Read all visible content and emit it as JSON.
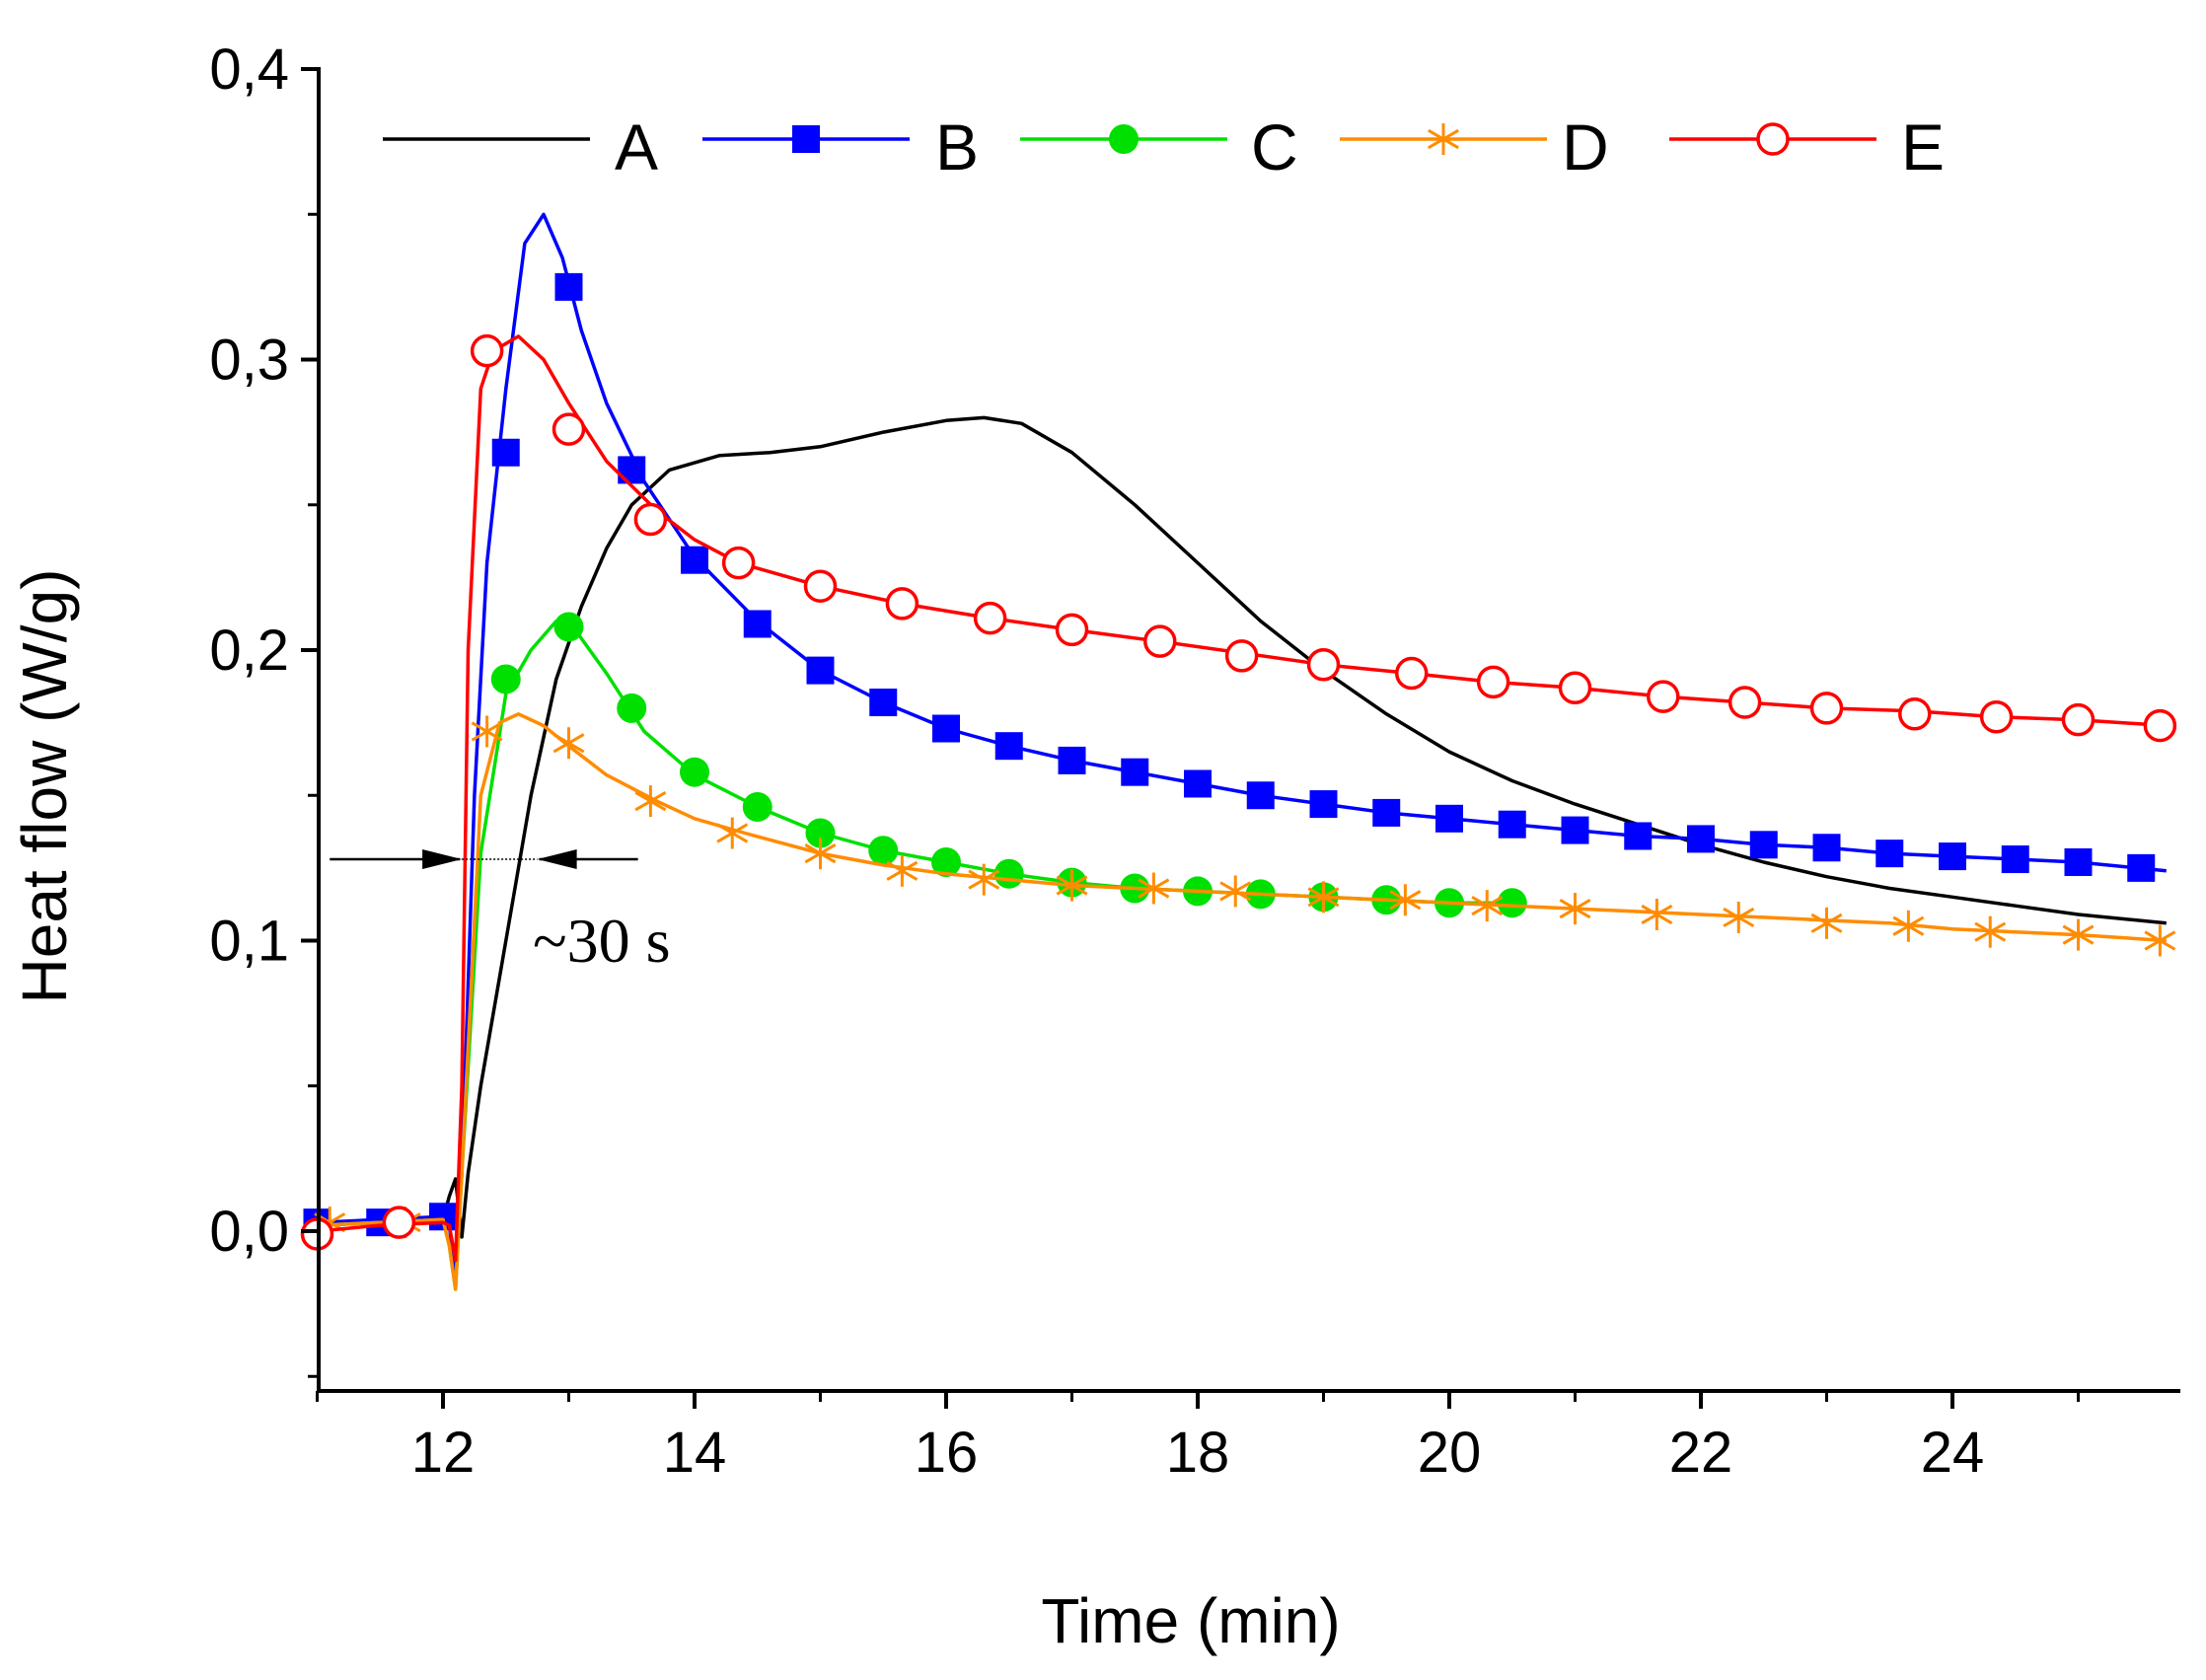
{
  "chart_data": {
    "type": "line",
    "title": "",
    "xlabel": "Time (min)",
    "ylabel": "Heat flow (W/g)",
    "xlim": [
      11,
      25.7
    ],
    "ylim": [
      -0.055,
      0.4
    ],
    "xticks": [
      12,
      14,
      16,
      18,
      20,
      22,
      24
    ],
    "xtick_labels": [
      "12",
      "14",
      "16",
      "18",
      "20",
      "22",
      "24"
    ],
    "yticks": [
      0.0,
      0.1,
      0.2,
      0.3,
      0.4
    ],
    "ytick_labels": [
      "0,0",
      "0,1",
      "0,2",
      "0,3",
      "0,4"
    ],
    "yticks_minor": [
      -0.05,
      0.05,
      0.15,
      0.25,
      0.35
    ],
    "legend_position": "top",
    "annotation": {
      "text": "~30 s",
      "interval_start": 12.15,
      "interval_end": 12.75,
      "y": 0.128,
      "arrow_left_from": 11.1,
      "arrow_right_from": 13.55
    },
    "series": [
      {
        "name": "A",
        "color": "#000000",
        "marker": "none",
        "curve": [
          [
            11.0,
            0.002
          ],
          [
            11.5,
            0.003
          ],
          [
            12.0,
            0.004
          ],
          [
            12.05,
            0.012
          ],
          [
            12.1,
            0.018
          ],
          [
            12.15,
            -0.002
          ],
          [
            12.2,
            0.02
          ],
          [
            12.3,
            0.05
          ],
          [
            12.5,
            0.1
          ],
          [
            12.7,
            0.15
          ],
          [
            12.9,
            0.19
          ],
          [
            13.1,
            0.215
          ],
          [
            13.3,
            0.235
          ],
          [
            13.5,
            0.25
          ],
          [
            13.8,
            0.262
          ],
          [
            14.2,
            0.267
          ],
          [
            14.6,
            0.268
          ],
          [
            15.0,
            0.27
          ],
          [
            15.5,
            0.275
          ],
          [
            16.0,
            0.279
          ],
          [
            16.3,
            0.28
          ],
          [
            16.6,
            0.278
          ],
          [
            17.0,
            0.268
          ],
          [
            17.5,
            0.25
          ],
          [
            18.0,
            0.23
          ],
          [
            18.5,
            0.21
          ],
          [
            19.0,
            0.193
          ],
          [
            19.5,
            0.178
          ],
          [
            20.0,
            0.165
          ],
          [
            20.5,
            0.155
          ],
          [
            21.0,
            0.147
          ],
          [
            21.5,
            0.14
          ],
          [
            22.0,
            0.133
          ],
          [
            22.5,
            0.127
          ],
          [
            23.0,
            0.122
          ],
          [
            23.5,
            0.118
          ],
          [
            24.0,
            0.115
          ],
          [
            24.5,
            0.112
          ],
          [
            25.0,
            0.109
          ],
          [
            25.7,
            0.106
          ]
        ],
        "markers": []
      },
      {
        "name": "B",
        "color": "#0000ff",
        "marker": "square",
        "curve": [
          [
            11.0,
            0.003
          ],
          [
            11.5,
            0.004
          ],
          [
            12.0,
            0.005
          ],
          [
            12.05,
            0.002
          ],
          [
            12.1,
            -0.015
          ],
          [
            12.15,
            0.02
          ],
          [
            12.25,
            0.15
          ],
          [
            12.35,
            0.23
          ],
          [
            12.5,
            0.29
          ],
          [
            12.65,
            0.34
          ],
          [
            12.8,
            0.35
          ],
          [
            12.95,
            0.335
          ],
          [
            13.1,
            0.31
          ],
          [
            13.3,
            0.285
          ],
          [
            13.6,
            0.258
          ],
          [
            14.0,
            0.232
          ],
          [
            14.5,
            0.21
          ],
          [
            15.0,
            0.193
          ],
          [
            15.5,
            0.182
          ],
          [
            16.0,
            0.173
          ],
          [
            16.5,
            0.167
          ],
          [
            17.0,
            0.162
          ],
          [
            17.5,
            0.158
          ],
          [
            18.0,
            0.154
          ],
          [
            18.5,
            0.15
          ],
          [
            19.0,
            0.147
          ],
          [
            19.5,
            0.144
          ],
          [
            20.0,
            0.142
          ],
          [
            20.5,
            0.14
          ],
          [
            21.0,
            0.138
          ],
          [
            21.5,
            0.136
          ],
          [
            22.0,
            0.135
          ],
          [
            22.5,
            0.133
          ],
          [
            23.0,
            0.132
          ],
          [
            23.5,
            0.13
          ],
          [
            24.0,
            0.129
          ],
          [
            24.5,
            0.128
          ],
          [
            25.0,
            0.127
          ],
          [
            25.7,
            0.124
          ]
        ],
        "markers": [
          [
            11.0,
            0.003
          ],
          [
            11.5,
            0.003
          ],
          [
            12.0,
            0.005
          ],
          [
            12.5,
            0.268
          ],
          [
            13.0,
            0.325
          ],
          [
            13.5,
            0.262
          ],
          [
            14.0,
            0.231
          ],
          [
            14.5,
            0.209
          ],
          [
            15.0,
            0.193
          ],
          [
            15.5,
            0.182
          ],
          [
            16.0,
            0.173
          ],
          [
            16.5,
            0.167
          ],
          [
            17.0,
            0.162
          ],
          [
            17.5,
            0.158
          ],
          [
            18.0,
            0.154
          ],
          [
            18.5,
            0.15
          ],
          [
            19.0,
            0.147
          ],
          [
            19.5,
            0.144
          ],
          [
            20.0,
            0.142
          ],
          [
            20.5,
            0.14
          ],
          [
            21.0,
            0.138
          ],
          [
            21.5,
            0.136
          ],
          [
            22.0,
            0.135
          ],
          [
            22.5,
            0.133
          ],
          [
            23.0,
            0.132
          ],
          [
            23.5,
            0.13
          ],
          [
            24.0,
            0.129
          ],
          [
            24.5,
            0.128
          ],
          [
            25.0,
            0.127
          ],
          [
            25.5,
            0.125
          ]
        ]
      },
      {
        "name": "C",
        "color": "#00e000",
        "marker": "circle-filled",
        "curve": [
          [
            11.0,
            0.002
          ],
          [
            11.5,
            0.003
          ],
          [
            12.0,
            0.004
          ],
          [
            12.05,
            -0.005
          ],
          [
            12.1,
            -0.02
          ],
          [
            12.15,
            0.02
          ],
          [
            12.3,
            0.13
          ],
          [
            12.5,
            0.185
          ],
          [
            12.7,
            0.2
          ],
          [
            12.9,
            0.21
          ],
          [
            13.05,
            0.207
          ],
          [
            13.3,
            0.192
          ],
          [
            13.6,
            0.172
          ],
          [
            14.0,
            0.157
          ],
          [
            14.5,
            0.146
          ],
          [
            15.0,
            0.137
          ],
          [
            15.5,
            0.131
          ],
          [
            16.0,
            0.127
          ],
          [
            16.5,
            0.123
          ],
          [
            17.0,
            0.12
          ],
          [
            17.5,
            0.118
          ],
          [
            18.0,
            0.117
          ],
          [
            18.5,
            0.116
          ],
          [
            19.0,
            0.115
          ],
          [
            19.5,
            0.114
          ],
          [
            20.0,
            0.113
          ],
          [
            20.5,
            0.113
          ]
        ],
        "markers": [
          [
            12.5,
            0.19
          ],
          [
            13.0,
            0.208
          ],
          [
            13.5,
            0.18
          ],
          [
            14.0,
            0.158
          ],
          [
            14.5,
            0.146
          ],
          [
            15.0,
            0.137
          ],
          [
            15.5,
            0.131
          ],
          [
            16.0,
            0.127
          ],
          [
            16.5,
            0.123
          ],
          [
            17.0,
            0.12
          ],
          [
            17.5,
            0.118
          ],
          [
            18.0,
            0.117
          ],
          [
            18.5,
            0.116
          ],
          [
            19.0,
            0.115
          ],
          [
            19.5,
            0.114
          ],
          [
            20.0,
            0.113
          ],
          [
            20.5,
            0.113
          ]
        ]
      },
      {
        "name": "D",
        "color": "#ff8c00",
        "marker": "asterisk",
        "curve": [
          [
            11.0,
            0.002
          ],
          [
            11.5,
            0.003
          ],
          [
            12.0,
            0.004
          ],
          [
            12.05,
            -0.005
          ],
          [
            12.1,
            -0.02
          ],
          [
            12.15,
            0.02
          ],
          [
            12.3,
            0.15
          ],
          [
            12.45,
            0.175
          ],
          [
            12.6,
            0.178
          ],
          [
            12.8,
            0.174
          ],
          [
            13.0,
            0.167
          ],
          [
            13.3,
            0.157
          ],
          [
            13.7,
            0.148
          ],
          [
            14.0,
            0.142
          ],
          [
            14.4,
            0.137
          ],
          [
            15.0,
            0.13
          ],
          [
            15.5,
            0.126
          ],
          [
            16.0,
            0.123
          ],
          [
            16.5,
            0.121
          ],
          [
            17.0,
            0.119
          ],
          [
            17.5,
            0.118
          ],
          [
            18.0,
            0.117
          ],
          [
            18.5,
            0.116
          ],
          [
            19.0,
            0.115
          ],
          [
            19.5,
            0.114
          ],
          [
            20.0,
            0.113
          ],
          [
            20.5,
            0.112
          ],
          [
            21.0,
            0.111
          ],
          [
            21.5,
            0.11
          ],
          [
            22.0,
            0.109
          ],
          [
            22.5,
            0.108
          ],
          [
            23.0,
            0.107
          ],
          [
            23.5,
            0.106
          ],
          [
            24.0,
            0.104
          ],
          [
            24.5,
            0.103
          ],
          [
            25.0,
            0.102
          ],
          [
            25.7,
            0.1
          ]
        ],
        "markers": [
          [
            11.1,
            0.003
          ],
          [
            11.7,
            0.003
          ],
          [
            12.35,
            0.172
          ],
          [
            13.0,
            0.168
          ],
          [
            13.65,
            0.148
          ],
          [
            14.3,
            0.137
          ],
          [
            15.0,
            0.13
          ],
          [
            15.65,
            0.124
          ],
          [
            16.3,
            0.121
          ],
          [
            17.0,
            0.119
          ],
          [
            17.65,
            0.118
          ],
          [
            18.3,
            0.117
          ],
          [
            19.0,
            0.115
          ],
          [
            19.65,
            0.114
          ],
          [
            20.3,
            0.112
          ],
          [
            21.0,
            0.111
          ],
          [
            21.65,
            0.109
          ],
          [
            22.3,
            0.108
          ],
          [
            23.0,
            0.106
          ],
          [
            23.65,
            0.105
          ],
          [
            24.3,
            0.103
          ],
          [
            25.0,
            0.102
          ],
          [
            25.65,
            0.1
          ]
        ]
      },
      {
        "name": "E",
        "color": "#ff0000",
        "marker": "circle-open",
        "curve": [
          [
            11.0,
            0.0
          ],
          [
            11.5,
            0.002
          ],
          [
            12.0,
            0.003
          ],
          [
            12.05,
            0.002
          ],
          [
            12.1,
            -0.01
          ],
          [
            12.15,
            0.05
          ],
          [
            12.2,
            0.2
          ],
          [
            12.3,
            0.29
          ],
          [
            12.4,
            0.303
          ],
          [
            12.6,
            0.308
          ],
          [
            12.8,
            0.3
          ],
          [
            13.0,
            0.285
          ],
          [
            13.3,
            0.265
          ],
          [
            13.7,
            0.248
          ],
          [
            14.0,
            0.238
          ],
          [
            14.35,
            0.23
          ],
          [
            15.0,
            0.222
          ],
          [
            15.65,
            0.216
          ],
          [
            16.35,
            0.211
          ],
          [
            17.0,
            0.207
          ],
          [
            17.7,
            0.203
          ],
          [
            18.35,
            0.199
          ],
          [
            19.0,
            0.195
          ],
          [
            19.7,
            0.192
          ],
          [
            20.35,
            0.189
          ],
          [
            21.0,
            0.187
          ],
          [
            21.7,
            0.184
          ],
          [
            22.35,
            0.182
          ],
          [
            23.0,
            0.18
          ],
          [
            23.7,
            0.179
          ],
          [
            24.35,
            0.177
          ],
          [
            25.0,
            0.176
          ],
          [
            25.7,
            0.174
          ]
        ],
        "markers": [
          [
            11.0,
            -0.001
          ],
          [
            11.65,
            0.003
          ],
          [
            12.35,
            0.303
          ],
          [
            13.0,
            0.276
          ],
          [
            13.65,
            0.245
          ],
          [
            14.35,
            0.23
          ],
          [
            15.0,
            0.222
          ],
          [
            15.65,
            0.216
          ],
          [
            16.35,
            0.211
          ],
          [
            17.0,
            0.207
          ],
          [
            17.7,
            0.203
          ],
          [
            18.35,
            0.198
          ],
          [
            19.0,
            0.195
          ],
          [
            19.7,
            0.192
          ],
          [
            20.35,
            0.189
          ],
          [
            21.0,
            0.187
          ],
          [
            21.7,
            0.184
          ],
          [
            22.35,
            0.182
          ],
          [
            23.0,
            0.18
          ],
          [
            23.7,
            0.178
          ],
          [
            24.35,
            0.177
          ],
          [
            25.0,
            0.176
          ],
          [
            25.65,
            0.174
          ]
        ]
      }
    ]
  }
}
